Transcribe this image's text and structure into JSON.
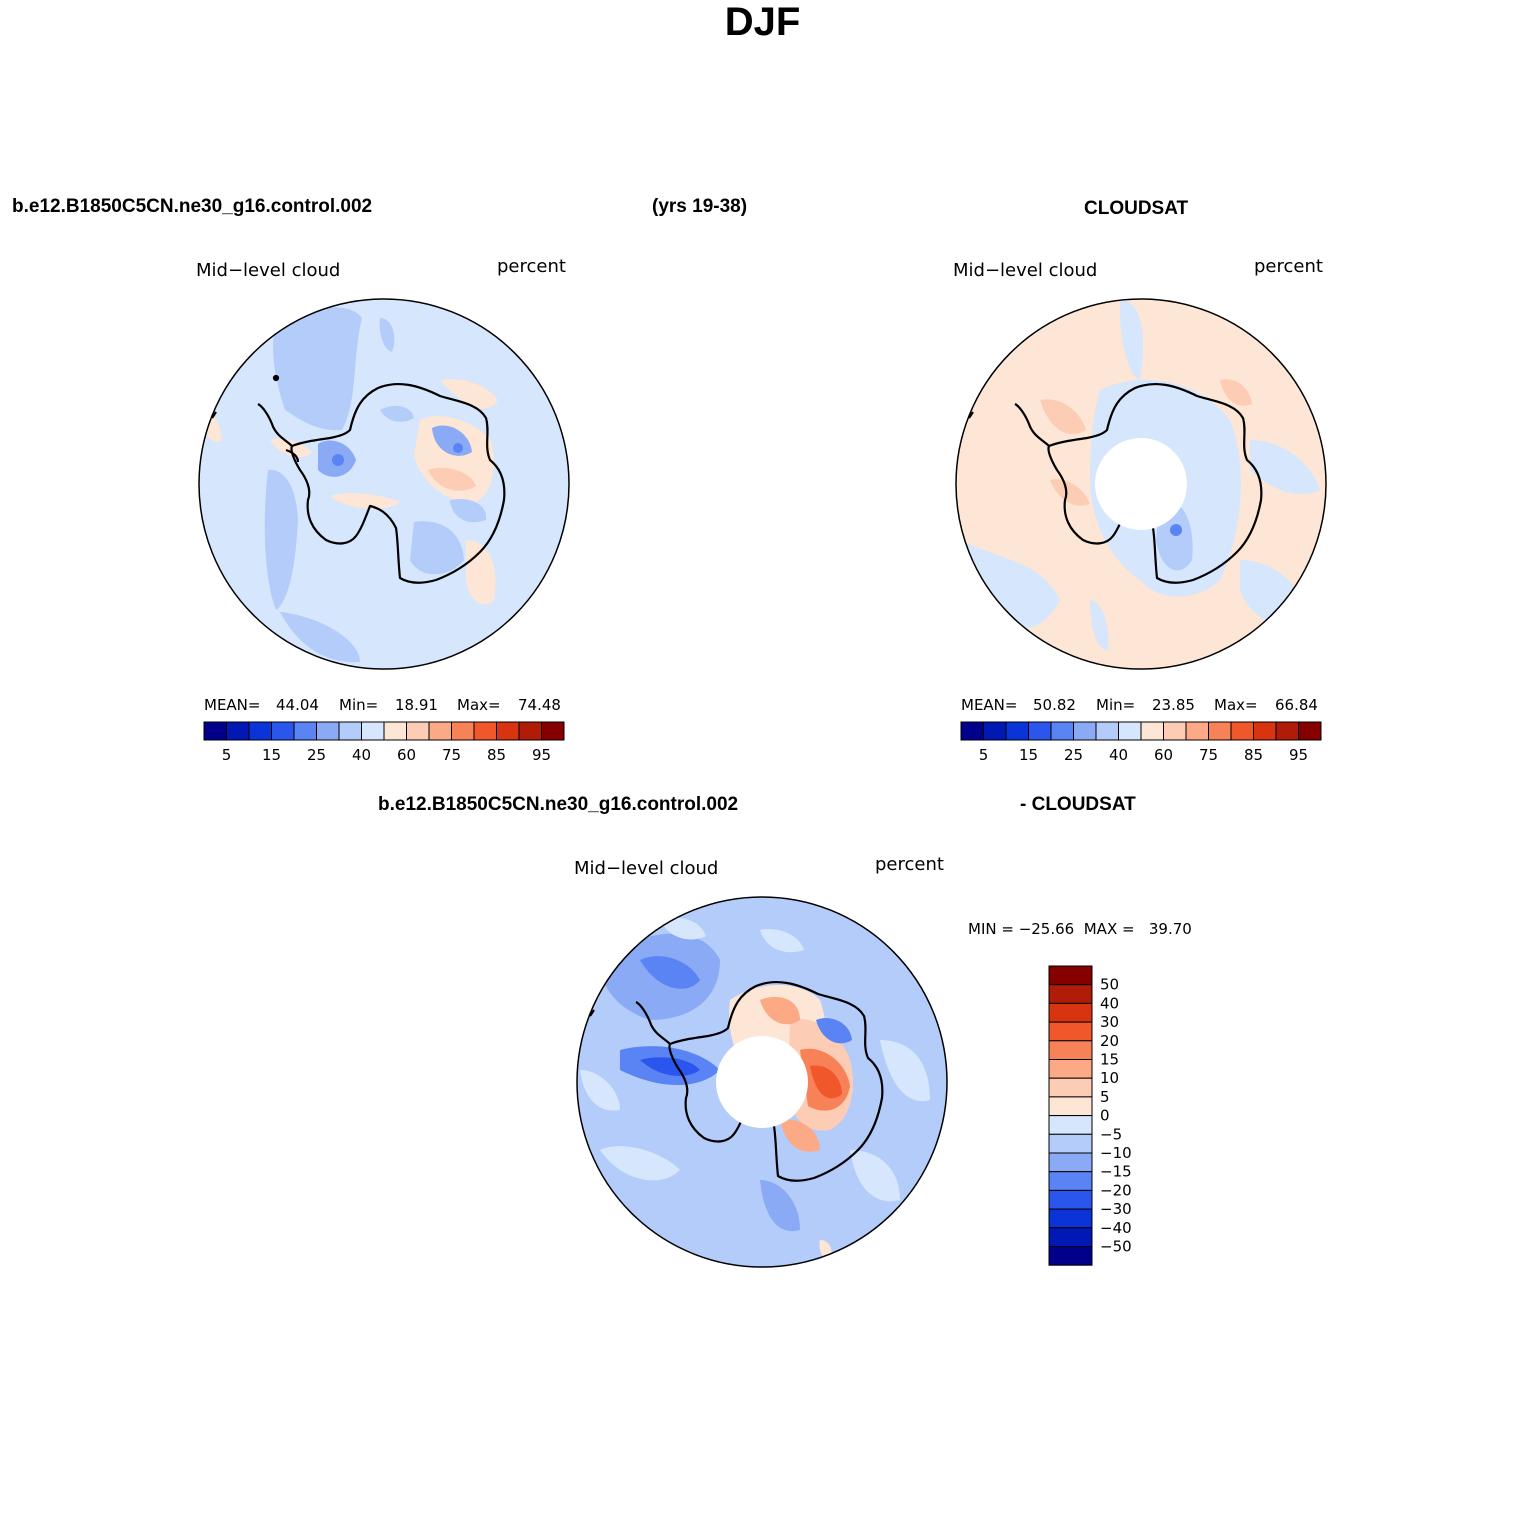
{
  "title": "DJF",
  "top_left_case": "b.e12.B1850C5CN.ne30_g16.control.002",
  "top_years": "(yrs 19-38)",
  "top_right_obs": "CLOUDSAT",
  "bottom_case": "b.e12.B1850C5CN.ne30_g16.control.002",
  "bottom_minus_obs": "- CLOUDSAT",
  "panels": [
    {
      "variable": "Mid−level cloud",
      "units": "percent",
      "stats": {
        "mean_label": "MEAN=",
        "mean": "44.04",
        "min_label": "Min=",
        "min": "18.91",
        "max_label": "Max=",
        "max": "74.48"
      }
    },
    {
      "variable": "Mid−level cloud",
      "units": "percent",
      "stats": {
        "mean_label": "MEAN=",
        "mean": "50.82",
        "min_label": "Min=",
        "min": "23.85",
        "max_label": "Max=",
        "max": "66.84"
      }
    },
    {
      "variable": "Mid−level cloud",
      "units": "percent",
      "stats": "MIN = −25.66  MAX =   39.70"
    }
  ],
  "colorbar_abs": {
    "colors": [
      "#00008a",
      "#0018b4",
      "#0a34d8",
      "#2a56ee",
      "#5a84f4",
      "#8aaaf6",
      "#b4ccfa",
      "#d6e6fc",
      "#fde6d6",
      "#fcccb4",
      "#fcaa86",
      "#f88258",
      "#f0582c",
      "#d83410",
      "#b01c08",
      "#860000"
    ],
    "labels": [
      "5",
      "15",
      "25",
      "40",
      "60",
      "75",
      "85",
      "95"
    ]
  },
  "colorbar_diff": {
    "colors": [
      "#860000",
      "#b01c08",
      "#d83410",
      "#f0582c",
      "#f88258",
      "#fcaa86",
      "#fcccb4",
      "#fde6d6",
      "#d6e6fc",
      "#b4ccfa",
      "#8aaaf6",
      "#5a84f4",
      "#2a56ee",
      "#0a34d8",
      "#0018b4",
      "#00008a"
    ],
    "labels": [
      "50",
      "40",
      "30",
      "20",
      "15",
      "10",
      "5",
      "0",
      "−5",
      "−10",
      "−15",
      "−20",
      "−30",
      "−40",
      "−50"
    ]
  },
  "colors": {
    "background": "#ffffff",
    "base_model": "#d6e6fc",
    "base_obs": "#fde6d6",
    "base_diff": "#b4ccfa",
    "coast": "#000000"
  }
}
